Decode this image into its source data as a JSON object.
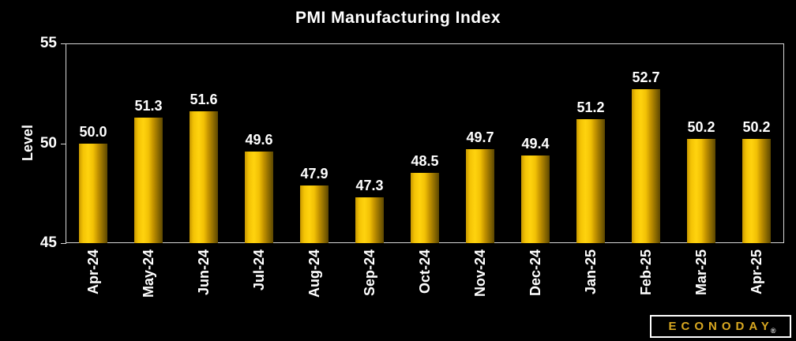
{
  "title": "PMI Manufacturing Index",
  "chart_data": {
    "type": "bar",
    "title": "PMI Manufacturing Index",
    "xlabel": "",
    "ylabel": "Level",
    "categories": [
      "Apr-24",
      "May-24",
      "Jun-24",
      "Jul-24",
      "Aug-24",
      "Sep-24",
      "Oct-24",
      "Nov-24",
      "Dec-24",
      "Jan-25",
      "Feb-25",
      "Mar-25",
      "Apr-25"
    ],
    "values": [
      50.0,
      51.3,
      51.6,
      49.6,
      47.9,
      47.3,
      48.5,
      49.7,
      49.4,
      51.2,
      52.7,
      50.2,
      50.2
    ],
    "value_labels": [
      "50.0",
      "51.3",
      "51.6",
      "49.6",
      "47.9",
      "47.3",
      "48.5",
      "49.7",
      "49.4",
      "51.2",
      "52.7",
      "50.2",
      "50.2"
    ],
    "ylim": [
      45,
      55
    ],
    "yticks": [
      45,
      50,
      55
    ],
    "grid": false,
    "legend": "none",
    "colors": {
      "background": "#000000",
      "bar_bright": "#ffd30e",
      "bar_dark": "#5c4700",
      "axis": "#d6d6d6",
      "text": "#ffffff"
    }
  },
  "logo": {
    "text": "ECONODAY",
    "registered_mark": "®",
    "color": "#d9a821"
  }
}
